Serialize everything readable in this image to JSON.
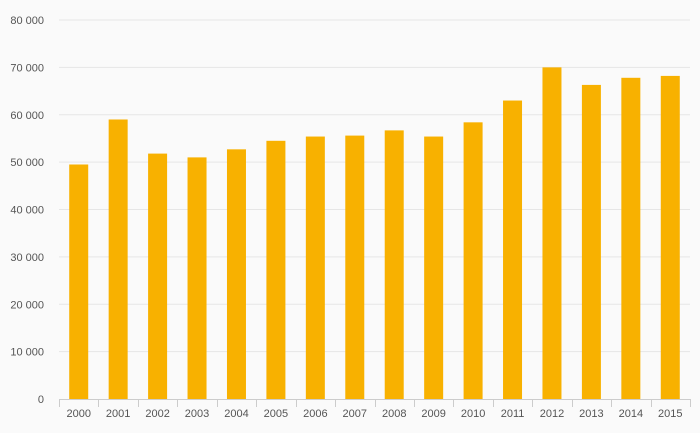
{
  "chart_data": {
    "type": "bar",
    "title": "",
    "xlabel": "",
    "ylabel": "",
    "categories": [
      "2000",
      "2001",
      "2002",
      "2003",
      "2004",
      "2005",
      "2006",
      "2007",
      "2008",
      "2009",
      "2010",
      "2011",
      "2012",
      "2013",
      "2014",
      "2015"
    ],
    "values": [
      49500,
      59000,
      51800,
      51000,
      52700,
      54500,
      55400,
      55600,
      56700,
      55400,
      58400,
      63000,
      70000,
      66300,
      67800,
      68200
    ],
    "ylim": [
      0,
      80000
    ],
    "yticks": [
      0,
      10000,
      20000,
      30000,
      40000,
      50000,
      60000,
      70000,
      80000
    ],
    "ytick_labels": [
      "0",
      "10 000",
      "20 000",
      "30 000",
      "40 000",
      "50 000",
      "60 000",
      "70 000",
      "80 000"
    ],
    "grid": true,
    "legend": "none",
    "colors": {
      "bar": "#F8B100",
      "grid": "#e6e6e6",
      "axis": "#cccccc",
      "text": "#555555",
      "background": "#fafafa"
    }
  }
}
